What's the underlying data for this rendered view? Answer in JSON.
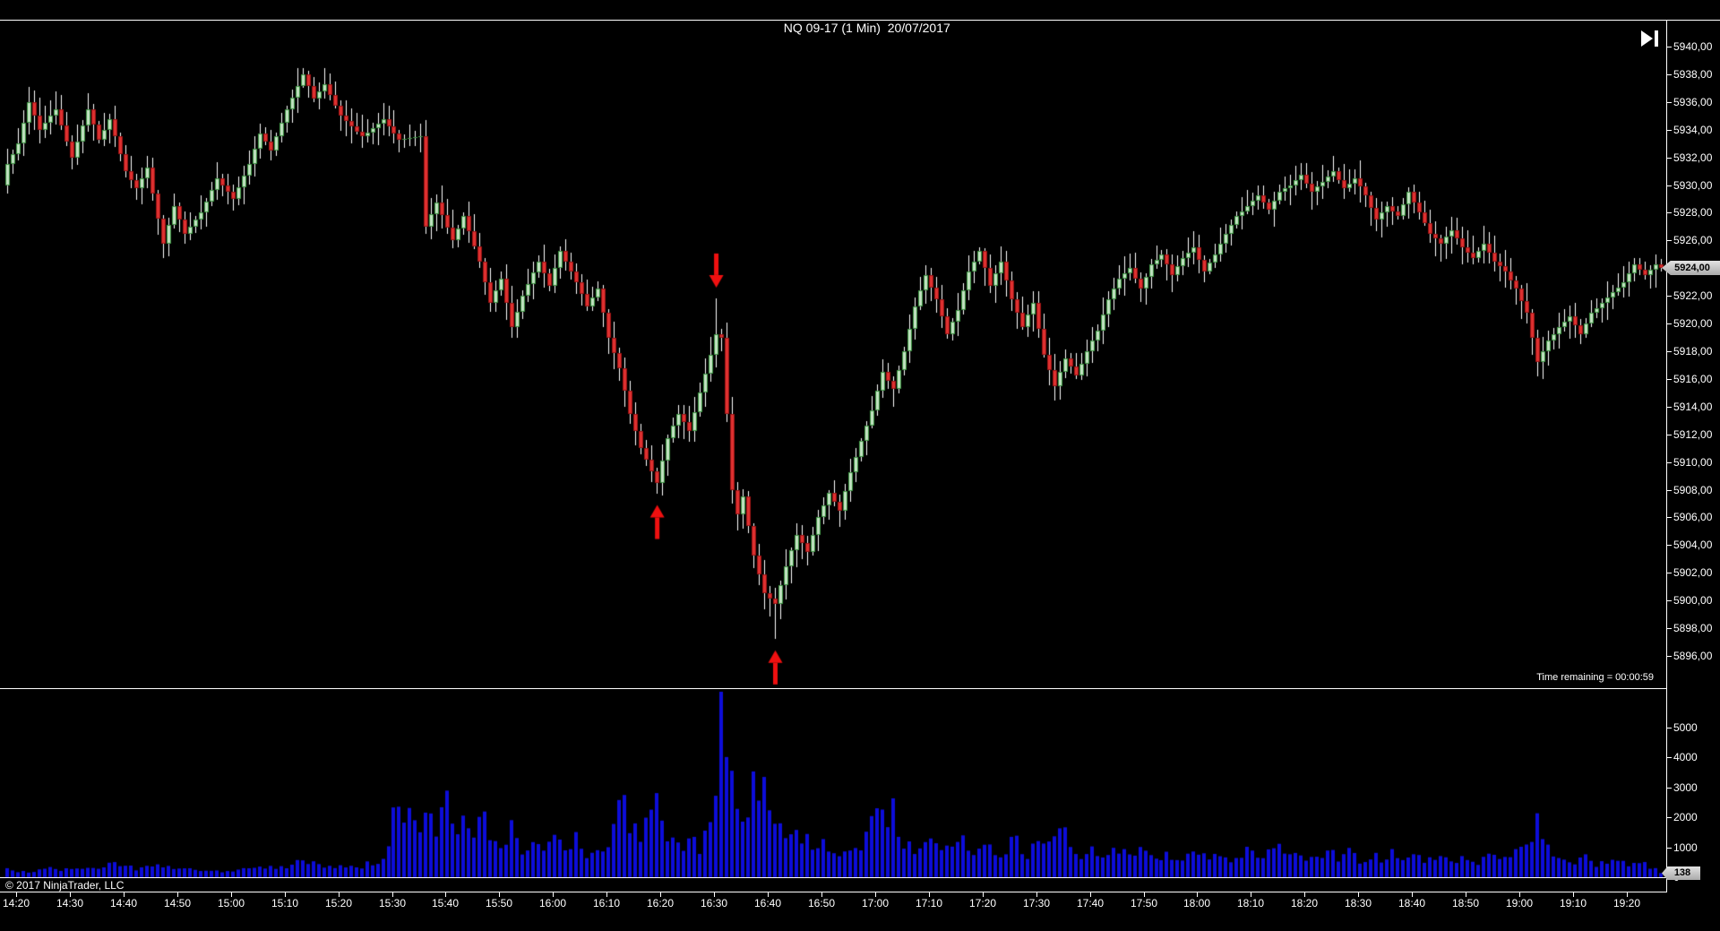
{
  "window": {
    "title": "NQ 09-17 (1 Min)  20/07/2017"
  },
  "toolbar": {
    "go_to_end_icon": "play-to-end-icon"
  },
  "status": {
    "time_remaining": "Time remaining = 00:00:59"
  },
  "footer": {
    "copyright": "© 2017 NinjaTrader, LLC"
  },
  "price_axis": {
    "current_price_label": "5924,00",
    "tick_values": [
      5940,
      5938,
      5936,
      5934,
      5932,
      5930,
      5928,
      5926,
      5924,
      5922,
      5920,
      5918,
      5916,
      5914,
      5912,
      5910,
      5908,
      5906,
      5904,
      5902,
      5900,
      5898,
      5896
    ],
    "tick_labels": [
      "5940,00",
      "5938,00",
      "5936,00",
      "5934,00",
      "5932,00",
      "5930,00",
      "5928,00",
      "5926,00",
      "5924,00",
      "5922,00",
      "5920,00",
      "5918,00",
      "5916,00",
      "5914,00",
      "5912,00",
      "5910,00",
      "5908,00",
      "5906,00",
      "5904,00",
      "5902,00",
      "5900,00",
      "5898,00",
      "5896,00"
    ]
  },
  "volume_axis": {
    "current_value_label": "138",
    "tick_values": [
      5000,
      4000,
      3000,
      2000,
      1000,
      0
    ],
    "tick_labels": [
      "5000",
      "4000",
      "3000",
      "2000",
      "1000",
      "0"
    ]
  },
  "time_axis": {
    "labels": [
      "14:20",
      "14:30",
      "14:40",
      "14:50",
      "15:00",
      "15:10",
      "15:20",
      "15:30",
      "15:40",
      "15:50",
      "16:00",
      "16:10",
      "16:20",
      "16:30",
      "16:40",
      "16:50",
      "17:00",
      "17:10",
      "17:20",
      "17:30",
      "17:40",
      "17:50",
      "18:00",
      "18:10",
      "18:20",
      "18:30",
      "18:40",
      "18:50",
      "19:00",
      "19:10",
      "19:20"
    ]
  },
  "colors": {
    "background": "#000000",
    "up_fill": "#C2E3C2",
    "up_border": "#3E9642",
    "down_fill": "#E03131",
    "down_border": "#9B1414",
    "wick": "#FFFFFF",
    "volume": "#0D0DD9",
    "arrow": "#EF1010",
    "axis_text": "#FFFFFF",
    "tag_bg": "#C8C8C8",
    "tag_text": "#000000"
  },
  "chart_data": [
    {
      "type": "candlestick",
      "title": "NQ 09-17 (1 Min)  20/07/2017",
      "instrument": "NQ 09-17",
      "interval": "1 Min",
      "date": "20/07/2017",
      "start_time": "14:18",
      "end_time": "19:26",
      "bars": 309,
      "ylim": [
        5896,
        5940
      ],
      "y_tick_step": 2,
      "grid": false,
      "last_price": 5924.0,
      "close_keypoints": [
        [
          0,
          5931.5
        ],
        [
          2,
          5933.0
        ],
        [
          4,
          5936.0
        ],
        [
          6,
          5934.0
        ],
        [
          9,
          5935.5
        ],
        [
          12,
          5932.0
        ],
        [
          15,
          5935.5
        ],
        [
          17,
          5933.25
        ],
        [
          19,
          5934.75
        ],
        [
          22,
          5931.0
        ],
        [
          24,
          5929.75
        ],
        [
          26,
          5931.25
        ],
        [
          29,
          5925.75
        ],
        [
          31,
          5928.5
        ],
        [
          33,
          5926.5
        ],
        [
          36,
          5928.0
        ],
        [
          39,
          5930.5
        ],
        [
          42,
          5929.0
        ],
        [
          45,
          5931.5
        ],
        [
          47,
          5933.75
        ],
        [
          49,
          5932.5
        ],
        [
          52,
          5935.5
        ],
        [
          55,
          5938.0
        ],
        [
          57,
          5936.25
        ],
        [
          59,
          5937.25
        ],
        [
          62,
          5935.0
        ],
        [
          66,
          5933.5
        ],
        [
          70,
          5934.75
        ],
        [
          73,
          5933.25
        ],
        [
          77,
          5933.5
        ],
        [
          78,
          5927.0
        ],
        [
          80,
          5928.75
        ],
        [
          83,
          5926.0
        ],
        [
          85,
          5927.75
        ],
        [
          88,
          5924.5
        ],
        [
          90,
          5921.5
        ],
        [
          92,
          5923.25
        ],
        [
          94,
          5919.75
        ],
        [
          96,
          5922.0
        ],
        [
          99,
          5924.5
        ],
        [
          101,
          5922.75
        ],
        [
          103,
          5925.25
        ],
        [
          106,
          5923.0
        ],
        [
          108,
          5921.25
        ],
        [
          110,
          5922.5
        ],
        [
          112,
          5919.0
        ],
        [
          114,
          5916.75
        ],
        [
          116,
          5913.5
        ],
        [
          118,
          5911.0
        ],
        [
          121,
          5908.5
        ],
        [
          123,
          5911.75
        ],
        [
          125,
          5913.5
        ],
        [
          127,
          5912.25
        ],
        [
          129,
          5915.0
        ],
        [
          131,
          5917.75
        ],
        [
          132,
          5919.25
        ],
        [
          133,
          5919.0
        ],
        [
          134,
          5913.5
        ],
        [
          135,
          5908.0
        ],
        [
          136,
          5906.25
        ],
        [
          137,
          5907.5
        ],
        [
          139,
          5903.25
        ],
        [
          141,
          5900.5
        ],
        [
          143,
          5899.75
        ],
        [
          145,
          5902.5
        ],
        [
          147,
          5904.75
        ],
        [
          149,
          5903.5
        ],
        [
          151,
          5906.0
        ],
        [
          153,
          5907.75
        ],
        [
          155,
          5906.5
        ],
        [
          157,
          5909.25
        ],
        [
          159,
          5911.5
        ],
        [
          161,
          5913.75
        ],
        [
          163,
          5916.5
        ],
        [
          165,
          5915.25
        ],
        [
          167,
          5918.0
        ],
        [
          169,
          5921.25
        ],
        [
          171,
          5923.5
        ],
        [
          173,
          5921.75
        ],
        [
          175,
          5919.25
        ],
        [
          177,
          5921.0
        ],
        [
          179,
          5923.75
        ],
        [
          181,
          5925.25
        ],
        [
          183,
          5922.75
        ],
        [
          185,
          5924.5
        ],
        [
          187,
          5921.75
        ],
        [
          189,
          5919.75
        ],
        [
          191,
          5921.5
        ],
        [
          193,
          5917.75
        ],
        [
          195,
          5915.5
        ],
        [
          197,
          5917.5
        ],
        [
          199,
          5916.25
        ],
        [
          201,
          5918.0
        ],
        [
          203,
          5919.5
        ],
        [
          205,
          5921.75
        ],
        [
          207,
          5923.25
        ],
        [
          209,
          5924.0
        ],
        [
          211,
          5922.5
        ],
        [
          213,
          5924.25
        ],
        [
          215,
          5925.0
        ],
        [
          217,
          5923.5
        ],
        [
          219,
          5924.75
        ],
        [
          221,
          5925.5
        ],
        [
          223,
          5923.75
        ],
        [
          225,
          5925.0
        ],
        [
          227,
          5926.5
        ],
        [
          229,
          5927.75
        ],
        [
          231,
          5928.5
        ],
        [
          233,
          5929.25
        ],
        [
          235,
          5928.25
        ],
        [
          237,
          5929.5
        ],
        [
          239,
          5930.0
        ],
        [
          241,
          5930.75
        ],
        [
          243,
          5929.5
        ],
        [
          245,
          5930.25
        ],
        [
          247,
          5931.0
        ],
        [
          249,
          5929.75
        ],
        [
          251,
          5930.5
        ],
        [
          253,
          5929.25
        ],
        [
          255,
          5927.5
        ],
        [
          257,
          5928.5
        ],
        [
          259,
          5927.75
        ],
        [
          261,
          5929.5
        ],
        [
          263,
          5928.0
        ],
        [
          265,
          5926.5
        ],
        [
          267,
          5925.75
        ],
        [
          269,
          5926.75
        ],
        [
          271,
          5925.5
        ],
        [
          273,
          5924.75
        ],
        [
          275,
          5925.75
        ],
        [
          277,
          5924.5
        ],
        [
          279,
          5923.75
        ],
        [
          281,
          5922.5
        ],
        [
          283,
          5920.75
        ],
        [
          285,
          5917.25
        ],
        [
          287,
          5918.75
        ],
        [
          289,
          5919.75
        ],
        [
          291,
          5920.5
        ],
        [
          293,
          5919.25
        ],
        [
          295,
          5920.75
        ],
        [
          297,
          5921.5
        ],
        [
          299,
          5922.25
        ],
        [
          301,
          5923.0
        ],
        [
          303,
          5924.25
        ],
        [
          305,
          5923.5
        ],
        [
          307,
          5924.25
        ],
        [
          308,
          5924.0
        ]
      ],
      "annotations": [
        {
          "type": "arrow-up",
          "bar": 121,
          "time": "16:19",
          "price": 5906.9,
          "low_wick": 5907.7
        },
        {
          "type": "arrow-down",
          "bar": 132,
          "time": "16:30",
          "price": 5922.6,
          "high_wick": 5921.8
        },
        {
          "type": "arrow-up",
          "bar": 143,
          "time": "16:41",
          "price": 5896.4,
          "low_wick": 5897.2
        }
      ]
    },
    {
      "type": "bar",
      "name": "Volume",
      "ylim": [
        0,
        5800
      ],
      "y_ticks": [
        0,
        1000,
        2000,
        3000,
        4000,
        5000
      ],
      "grid": false,
      "last_value": 138,
      "volume_keypoints": [
        [
          0,
          260
        ],
        [
          4,
          180
        ],
        [
          8,
          320
        ],
        [
          12,
          220
        ],
        [
          16,
          300
        ],
        [
          20,
          450
        ],
        [
          24,
          280
        ],
        [
          29,
          420
        ],
        [
          34,
          240
        ],
        [
          40,
          200
        ],
        [
          46,
          320
        ],
        [
          52,
          380
        ],
        [
          55,
          520
        ],
        [
          60,
          340
        ],
        [
          65,
          300
        ],
        [
          70,
          650
        ],
        [
          72,
          1950
        ],
        [
          74,
          2150
        ],
        [
          76,
          1600
        ],
        [
          78,
          2350
        ],
        [
          80,
          1500
        ],
        [
          82,
          2450
        ],
        [
          84,
          1900
        ],
        [
          86,
          1450
        ],
        [
          88,
          2050
        ],
        [
          90,
          1600
        ],
        [
          92,
          1150
        ],
        [
          94,
          1700
        ],
        [
          96,
          950
        ],
        [
          98,
          1350
        ],
        [
          100,
          800
        ],
        [
          102,
          1150
        ],
        [
          104,
          900
        ],
        [
          106,
          1300
        ],
        [
          108,
          750
        ],
        [
          110,
          950
        ],
        [
          112,
          1250
        ],
        [
          114,
          2950
        ],
        [
          115,
          2300
        ],
        [
          116,
          1650
        ],
        [
          118,
          1400
        ],
        [
          120,
          1850
        ],
        [
          121,
          2250
        ],
        [
          123,
          1250
        ],
        [
          125,
          950
        ],
        [
          127,
          1200
        ],
        [
          129,
          1000
        ],
        [
          131,
          1600
        ],
        [
          132,
          2200
        ],
        [
          133,
          5800
        ],
        [
          134,
          3300
        ],
        [
          135,
          2850
        ],
        [
          136,
          1900
        ],
        [
          137,
          2400
        ],
        [
          138,
          1600
        ],
        [
          139,
          4300
        ],
        [
          140,
          2400
        ],
        [
          141,
          3400
        ],
        [
          142,
          2700
        ],
        [
          143,
          2100
        ],
        [
          144,
          1700
        ],
        [
          146,
          1150
        ],
        [
          148,
          1450
        ],
        [
          150,
          950
        ],
        [
          152,
          1200
        ],
        [
          154,
          800
        ],
        [
          156,
          1000
        ],
        [
          158,
          850
        ],
        [
          160,
          1250
        ],
        [
          162,
          2450
        ],
        [
          164,
          1500
        ],
        [
          165,
          2550
        ],
        [
          166,
          1300
        ],
        [
          168,
          1050
        ],
        [
          170,
          850
        ],
        [
          172,
          1200
        ],
        [
          174,
          800
        ],
        [
          176,
          1000
        ],
        [
          178,
          1350
        ],
        [
          180,
          900
        ],
        [
          182,
          1150
        ],
        [
          184,
          750
        ],
        [
          186,
          950
        ],
        [
          188,
          1250
        ],
        [
          190,
          800
        ],
        [
          192,
          1050
        ],
        [
          194,
          1350
        ],
        [
          196,
          1750
        ],
        [
          198,
          950
        ],
        [
          200,
          700
        ],
        [
          202,
          900
        ],
        [
          204,
          650
        ],
        [
          206,
          850
        ],
        [
          208,
          1050
        ],
        [
          210,
          700
        ],
        [
          212,
          950
        ],
        [
          214,
          600
        ],
        [
          216,
          850
        ],
        [
          218,
          550
        ],
        [
          220,
          750
        ],
        [
          222,
          950
        ],
        [
          224,
          650
        ],
        [
          226,
          850
        ],
        [
          228,
          550
        ],
        [
          230,
          750
        ],
        [
          232,
          950
        ],
        [
          234,
          650
        ],
        [
          236,
          850
        ],
        [
          238,
          1050
        ],
        [
          240,
          700
        ],
        [
          242,
          550
        ],
        [
          244,
          750
        ],
        [
          246,
          950
        ],
        [
          248,
          600
        ],
        [
          250,
          800
        ],
        [
          252,
          550
        ],
        [
          254,
          700
        ],
        [
          256,
          600
        ],
        [
          258,
          850
        ],
        [
          260,
          550
        ],
        [
          262,
          750
        ],
        [
          264,
          600
        ],
        [
          266,
          500
        ],
        [
          268,
          700
        ],
        [
          270,
          550
        ],
        [
          272,
          650
        ],
        [
          274,
          500
        ],
        [
          276,
          700
        ],
        [
          278,
          550
        ],
        [
          280,
          650
        ],
        [
          282,
          850
        ],
        [
          284,
          1300
        ],
        [
          285,
          2250
        ],
        [
          286,
          1100
        ],
        [
          288,
          750
        ],
        [
          290,
          600
        ],
        [
          292,
          500
        ],
        [
          294,
          650
        ],
        [
          296,
          450
        ],
        [
          298,
          550
        ],
        [
          300,
          650
        ],
        [
          302,
          450
        ],
        [
          304,
          550
        ],
        [
          306,
          350
        ],
        [
          308,
          138
        ]
      ]
    }
  ]
}
